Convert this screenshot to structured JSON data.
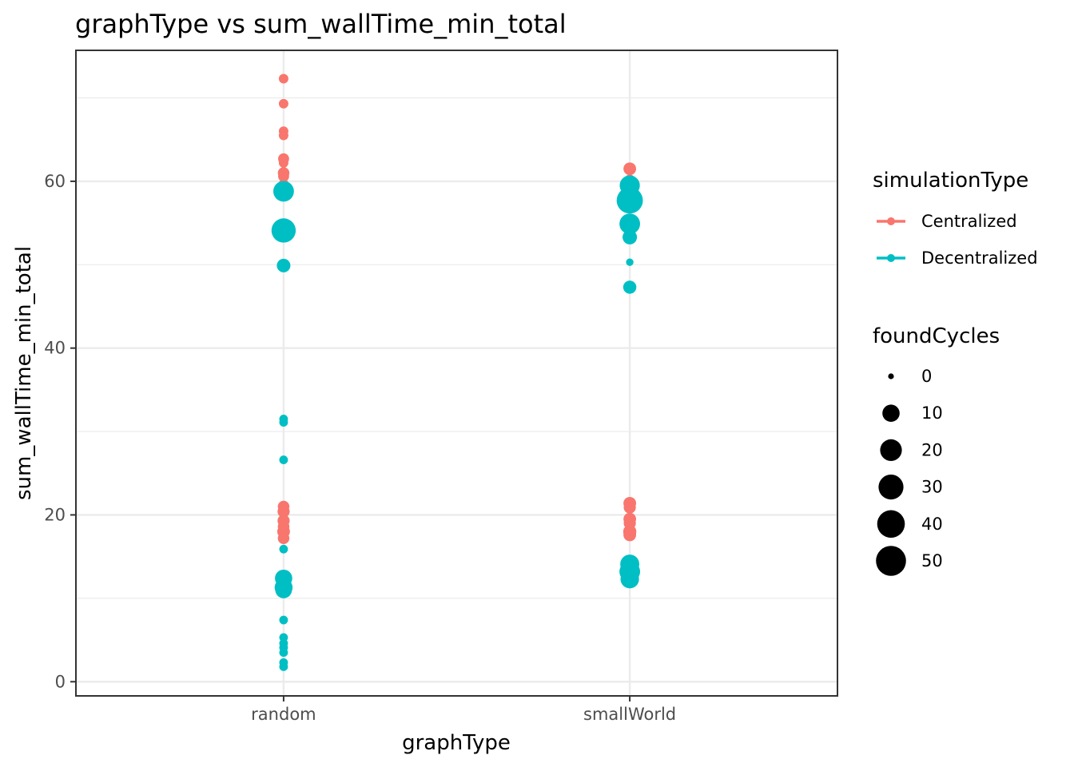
{
  "chart_data": {
    "type": "scatter",
    "title": "graphType  vs  sum_wallTime_min_total",
    "xlabel": "graphType",
    "ylabel": "sum_wallTime_min_total",
    "categories": [
      "random",
      "smallWorld"
    ],
    "ylim": [
      -1.7,
      75.7
    ],
    "yticks": [
      0,
      20,
      40,
      60
    ],
    "grid": true,
    "legend_position": "right",
    "colors": {
      "Centralized": "#f8766d",
      "Decentralized": "#00bfc4"
    },
    "color_legend": {
      "title": "simulationType",
      "entries": [
        "Centralized",
        "Decentralized"
      ]
    },
    "size_legend": {
      "title": "foundCycles",
      "values": [
        0,
        10,
        20,
        30,
        40,
        50
      ]
    },
    "series": [
      {
        "name": "Centralized",
        "points": [
          {
            "x": "random",
            "y": 72.3,
            "size": 3
          },
          {
            "x": "random",
            "y": 69.3,
            "size": 3
          },
          {
            "x": "random",
            "y": 66.0,
            "size": 3
          },
          {
            "x": "random",
            "y": 65.5,
            "size": 3
          },
          {
            "x": "random",
            "y": 62.7,
            "size": 5
          },
          {
            "x": "random",
            "y": 62.2,
            "size": 3
          },
          {
            "x": "random",
            "y": 61.0,
            "size": 6
          },
          {
            "x": "random",
            "y": 60.6,
            "size": 5
          },
          {
            "x": "random",
            "y": 59.7,
            "size": 3
          },
          {
            "x": "random",
            "y": 21.0,
            "size": 6
          },
          {
            "x": "random",
            "y": 20.4,
            "size": 7
          },
          {
            "x": "random",
            "y": 19.3,
            "size": 7
          },
          {
            "x": "random",
            "y": 18.6,
            "size": 6
          },
          {
            "x": "random",
            "y": 18.0,
            "size": 8
          },
          {
            "x": "random",
            "y": 17.2,
            "size": 6
          },
          {
            "x": "smallWorld",
            "y": 61.5,
            "size": 8
          },
          {
            "x": "smallWorld",
            "y": 60.1,
            "size": 6
          },
          {
            "x": "smallWorld",
            "y": 21.4,
            "size": 8
          },
          {
            "x": "smallWorld",
            "y": 20.9,
            "size": 7
          },
          {
            "x": "smallWorld",
            "y": 19.5,
            "size": 8
          },
          {
            "x": "smallWorld",
            "y": 19.0,
            "size": 7
          },
          {
            "x": "smallWorld",
            "y": 18.0,
            "size": 9
          },
          {
            "x": "smallWorld",
            "y": 17.6,
            "size": 8
          }
        ]
      },
      {
        "name": "Decentralized",
        "points": [
          {
            "x": "random",
            "y": 58.8,
            "size": 32
          },
          {
            "x": "random",
            "y": 54.1,
            "size": 48
          },
          {
            "x": "random",
            "y": 49.9,
            "size": 10
          },
          {
            "x": "random",
            "y": 31.5,
            "size": 2
          },
          {
            "x": "random",
            "y": 31.1,
            "size": 2
          },
          {
            "x": "random",
            "y": 26.6,
            "size": 2
          },
          {
            "x": "random",
            "y": 15.9,
            "size": 2
          },
          {
            "x": "random",
            "y": 12.4,
            "size": 20
          },
          {
            "x": "random",
            "y": 11.3,
            "size": 22
          },
          {
            "x": "random",
            "y": 11.0,
            "size": 18
          },
          {
            "x": "random",
            "y": 7.4,
            "size": 2
          },
          {
            "x": "random",
            "y": 5.3,
            "size": 2
          },
          {
            "x": "random",
            "y": 4.6,
            "size": 2
          },
          {
            "x": "random",
            "y": 4.1,
            "size": 2
          },
          {
            "x": "random",
            "y": 3.5,
            "size": 2
          },
          {
            "x": "random",
            "y": 2.3,
            "size": 2
          },
          {
            "x": "random",
            "y": 1.8,
            "size": 2
          },
          {
            "x": "smallWorld",
            "y": 59.5,
            "size": 30
          },
          {
            "x": "smallWorld",
            "y": 57.7,
            "size": 58
          },
          {
            "x": "smallWorld",
            "y": 54.9,
            "size": 32
          },
          {
            "x": "smallWorld",
            "y": 53.3,
            "size": 12
          },
          {
            "x": "smallWorld",
            "y": 50.3,
            "size": 1
          },
          {
            "x": "smallWorld",
            "y": 47.3,
            "size": 9
          },
          {
            "x": "smallWorld",
            "y": 14.1,
            "size": 26
          },
          {
            "x": "smallWorld",
            "y": 13.2,
            "size": 32
          },
          {
            "x": "smallWorld",
            "y": 12.3,
            "size": 24
          }
        ]
      }
    ]
  }
}
